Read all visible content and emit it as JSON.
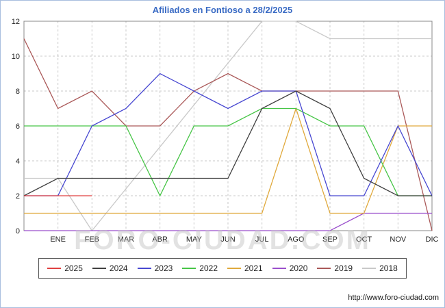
{
  "title": "Afiliados en Fontioso a 28/2/2025",
  "watermark": "FORO-CIUDAD.COM",
  "source_url": "http://www.foro-ciudad.com",
  "chart_data": {
    "type": "line",
    "x_labels": [
      "",
      "ENE",
      "FEB",
      "MAR",
      "ABR",
      "MAY",
      "JUN",
      "JUL",
      "AGO",
      "SEP",
      "OCT",
      "NOV",
      "DIC"
    ],
    "ylim": [
      0,
      12
    ],
    "yticks": [
      0,
      2,
      4,
      6,
      8,
      10,
      12
    ],
    "grid": true,
    "legend_position": "bottom",
    "series": [
      {
        "name": "2025",
        "color": "#e04040",
        "values": [
          2,
          2,
          2,
          null,
          null,
          null,
          null,
          null,
          null,
          null,
          null,
          null,
          null
        ]
      },
      {
        "name": "2024",
        "color": "#404040",
        "values": [
          2,
          3,
          3,
          3,
          3,
          3,
          3,
          7,
          8,
          7,
          3,
          2,
          2
        ]
      },
      {
        "name": "2023",
        "color": "#4747d1",
        "values": [
          2,
          2,
          6,
          7,
          9,
          8,
          7,
          8,
          8,
          2,
          2,
          6,
          2
        ]
      },
      {
        "name": "2022",
        "color": "#46c546",
        "values": [
          6,
          6,
          6,
          6,
          2,
          6,
          6,
          7,
          7,
          6,
          6,
          2,
          2
        ]
      },
      {
        "name": "2021",
        "color": "#e0a93c",
        "values": [
          1,
          1,
          1,
          1,
          1,
          1,
          1,
          1,
          7,
          1,
          1,
          6,
          6
        ]
      },
      {
        "name": "2020",
        "color": "#9a4fcc",
        "values": [
          0,
          0,
          0,
          0,
          0,
          0,
          0,
          0,
          0,
          0,
          1,
          1,
          1
        ]
      },
      {
        "name": "2019",
        "color": "#aa5858",
        "values": [
          11,
          7,
          8,
          6,
          6,
          8,
          9,
          8,
          8,
          8,
          8,
          8,
          0
        ]
      },
      {
        "name": "2018",
        "color": "#c9c9c9",
        "values": [
          3,
          3,
          0,
          null,
          null,
          null,
          null,
          12,
          12,
          11,
          11,
          11,
          11
        ]
      }
    ]
  }
}
